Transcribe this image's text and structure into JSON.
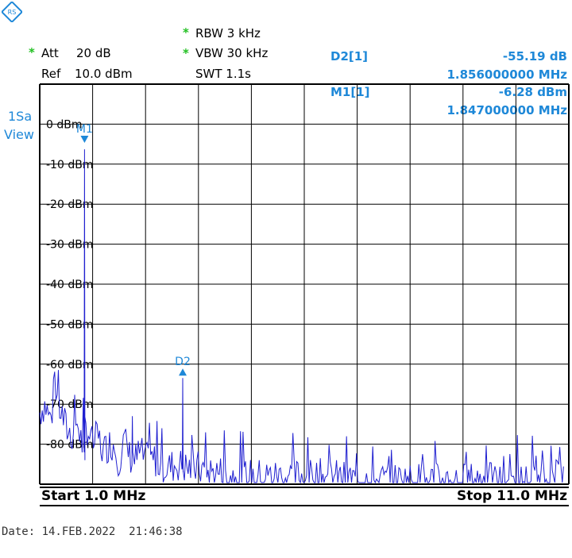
{
  "header": {
    "att_label": "Att",
    "att_value": "20 dB",
    "ref_label": "Ref",
    "ref_value": "10.0 dBm",
    "rbw": "RBW 3 kHz",
    "vbw": "VBW 30 kHz",
    "swt": "SWT 1.1s",
    "star": "*",
    "trace_mode_line1": "1Sa",
    "trace_mode_line2": "View"
  },
  "markers": {
    "d2_label": "D2[1]",
    "d2_level": "-55.19 dB",
    "d2_freq": "1.856000000 MHz",
    "m1_label": "M1[1]",
    "m1_level": "-6.28 dBm",
    "m1_freq": "1.847000000 MHz",
    "m1_tag": "M1",
    "d2_tag": "D2"
  },
  "footer": {
    "start": "Start 1.0 MHz",
    "stop": "Stop 11.0 MHz",
    "date": "Date: 14.FEB.2022  21:46:38"
  },
  "colors": {
    "trace": "#2020d0",
    "marker": "#1e88d8",
    "grid": "#000000",
    "annotation_star": "#22c022"
  },
  "chart_data": {
    "type": "line",
    "title": "",
    "xlabel": "",
    "ylabel": "",
    "x_start_mhz": 1.0,
    "x_stop_mhz": 11.0,
    "ylim": [
      -90,
      10
    ],
    "y_ticks": [
      0,
      -10,
      -20,
      -30,
      -40,
      -50,
      -60,
      -70,
      -80
    ],
    "y_tick_labels": [
      "0 dBm",
      "-10 dBm",
      "-20 dBm",
      "-30 dBm",
      "-40 dBm",
      "-50 dBm",
      "-60 dBm",
      "-70 dBm",
      "-80 dBm"
    ],
    "grid": true,
    "series": [
      {
        "x_mhz": [
          1.0,
          1.1,
          1.2,
          1.3,
          1.4,
          1.5,
          1.6,
          1.7,
          1.8,
          1.847,
          1.9,
          2.0,
          2.1,
          2.2,
          2.3,
          2.4,
          2.5,
          2.6,
          2.7,
          2.8,
          2.9,
          3.0,
          3.2,
          3.4,
          3.6,
          3.8,
          4.0,
          4.2,
          4.4,
          4.6,
          4.8,
          5.0,
          5.5,
          6.0,
          6.5,
          7.0,
          7.5,
          8.0,
          8.5,
          9.0,
          9.5,
          10.0,
          10.5,
          10.9
        ],
        "dbm": [
          -72,
          -70,
          -74,
          -68,
          -72,
          -76,
          -78,
          -74,
          -80,
          -6.28,
          -76,
          -80,
          -78,
          -82,
          -80,
          -80,
          -84,
          -79,
          -83,
          -84,
          -82,
          -84,
          -84,
          -86,
          -85,
          -86,
          -86,
          -87,
          -87,
          -88,
          -88,
          -88,
          -88,
          -88,
          -88,
          -89,
          -89,
          -89,
          -89,
          -89,
          -89,
          -89,
          -89,
          -88
        ]
      }
    ],
    "markers": [
      {
        "name": "M1",
        "x_mhz": 1.847,
        "level_dbm": -6.28
      },
      {
        "name": "D2",
        "x_mhz": 3.703,
        "level_dbm": -61.47
      }
    ]
  }
}
